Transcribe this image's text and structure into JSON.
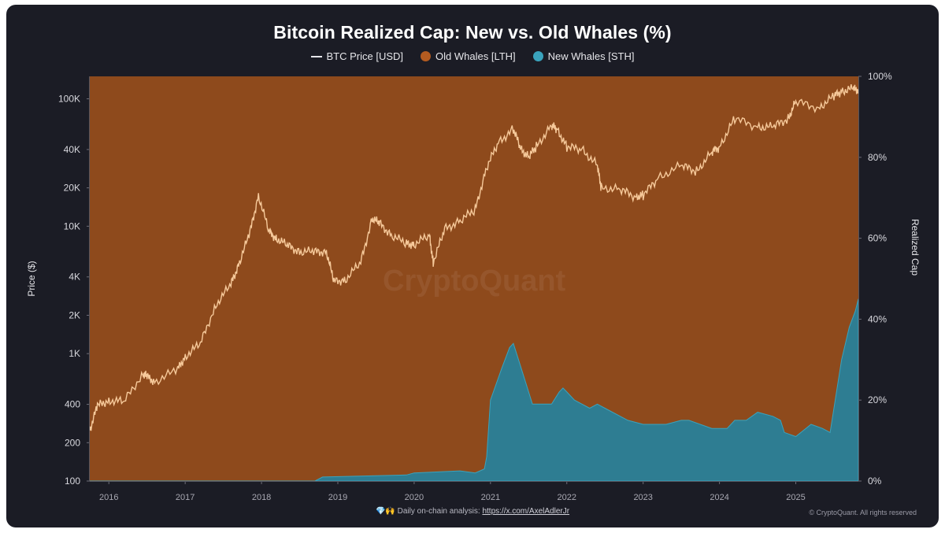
{
  "chart_data": {
    "type": "area",
    "title": "Bitcoin Realized Cap: New vs. Old Whales (%)",
    "ylabel_left": "Price ($)",
    "ylabel_right": "Realized Cap",
    "legend_position": "top-center",
    "x_ticks": [
      "2016",
      "2017",
      "2018",
      "2019",
      "2020",
      "2021",
      "2022",
      "2023",
      "2024",
      "2025"
    ],
    "y_left_ticks": [
      "100",
      "200",
      "400",
      "1K",
      "2K",
      "4K",
      "10K",
      "20K",
      "40K",
      "100K"
    ],
    "y_left_tick_values": [
      100,
      200,
      400,
      1000,
      2000,
      4000,
      10000,
      20000,
      40000,
      100000
    ],
    "y_left_scale": "log",
    "y_left_range": [
      100,
      150000
    ],
    "y_right_ticks": [
      "0%",
      "20%",
      "40%",
      "60%",
      "80%",
      "100%"
    ],
    "y_right_range": [
      0,
      100
    ],
    "x_range": [
      2015.75,
      2025.82
    ],
    "series": [
      {
        "name": "BTC Price [USD]",
        "kind": "line",
        "color": "#f6c99a",
        "x": [
          2015.75,
          2015.85,
          2016.0,
          2016.2,
          2016.45,
          2016.5,
          2016.6,
          2016.9,
          2017.0,
          2017.2,
          2017.4,
          2017.6,
          2017.7,
          2017.85,
          2017.96,
          2018.1,
          2018.2,
          2018.35,
          2018.5,
          2018.7,
          2018.85,
          2018.95,
          2019.1,
          2019.3,
          2019.45,
          2019.55,
          2019.7,
          2019.9,
          2020.0,
          2020.2,
          2020.25,
          2020.4,
          2020.6,
          2020.8,
          2020.95,
          2021.1,
          2021.3,
          2021.4,
          2021.5,
          2021.6,
          2021.8,
          2021.87,
          2022.0,
          2022.2,
          2022.4,
          2022.45,
          2022.7,
          2022.9,
          2023.0,
          2023.2,
          2023.5,
          2023.7,
          2023.9,
          2024.0,
          2024.2,
          2024.5,
          2024.7,
          2024.9,
          2025.0,
          2025.3,
          2025.5,
          2025.6,
          2025.75,
          2025.82
        ],
        "values": [
          250,
          390,
          430,
          420,
          700,
          660,
          600,
          750,
          950,
          1200,
          2400,
          3500,
          5000,
          9000,
          17500,
          9000,
          8000,
          7000,
          6300,
          6300,
          6300,
          3700,
          3800,
          5200,
          11500,
          10500,
          8500,
          7300,
          7200,
          8500,
          5200,
          9500,
          11000,
          13500,
          29000,
          45000,
          58000,
          40000,
          35000,
          42000,
          62000,
          58000,
          42000,
          40000,
          30000,
          20000,
          19500,
          17000,
          17500,
          24000,
          30000,
          27000,
          38000,
          42000,
          70000,
          60000,
          60000,
          70000,
          95000,
          85000,
          105000,
          115000,
          120000,
          118000
        ]
      },
      {
        "name": "Old Whales [LTH]",
        "kind": "area",
        "color": "#8e4a1c",
        "note": "complement of New Whales share (100% - STH)"
      },
      {
        "name": "New Whales [STH]",
        "kind": "area",
        "color": "#2e7d92",
        "x": [
          2015.75,
          2018.7,
          2018.8,
          2019.9,
          2020.0,
          2020.6,
          2020.8,
          2020.92,
          2020.95,
          2021.0,
          2021.15,
          2021.25,
          2021.3,
          2021.35,
          2021.45,
          2021.55,
          2021.6,
          2021.8,
          2021.9,
          2021.95,
          2022.0,
          2022.1,
          2022.3,
          2022.4,
          2022.5,
          2022.8,
          2023.0,
          2023.3,
          2023.5,
          2023.6,
          2023.9,
          2024.1,
          2024.2,
          2024.35,
          2024.5,
          2024.7,
          2024.8,
          2024.85,
          2025.0,
          2025.2,
          2025.35,
          2025.45,
          2025.6,
          2025.7,
          2025.78,
          2025.82
        ],
        "values": [
          0,
          0,
          1,
          1.5,
          2,
          2.5,
          2,
          3,
          6,
          20,
          28,
          33,
          34,
          31,
          25,
          19,
          19,
          19,
          22,
          23,
          22,
          20,
          18,
          19,
          18,
          15,
          14,
          14,
          15,
          15,
          13,
          13,
          15,
          15,
          17,
          16,
          15,
          12,
          11,
          14,
          13,
          12,
          30,
          38,
          42,
          45
        ]
      }
    ]
  },
  "footer": {
    "icons": "💎🙌",
    "text": "Daily on-chain analysis: ",
    "link": "https://x.com/AxelAdlerJr"
  },
  "copyright": "© CryptoQuant. All rights reserved",
  "watermark": "CryptoQuant",
  "colors": {
    "background": "#1b1c25",
    "old_whales": "#8e4a1c",
    "new_whales": "#2e7d92",
    "price_line": "#f6c99a"
  }
}
